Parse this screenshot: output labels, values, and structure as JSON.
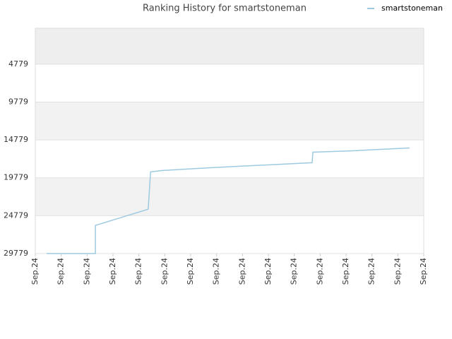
{
  "chart_data": {
    "type": "line",
    "title": "Ranking History for smartstoneman",
    "series": [
      {
        "name": "smartstoneman",
        "color": "#9ecae1",
        "x": [
          0.44,
          2.32,
          2.32,
          4.36,
          4.45,
          4.91,
          6.82,
          8.45,
          10.69,
          10.72,
          12.27,
          14.45
        ],
        "values": [
          29779,
          29779,
          26062,
          23924,
          18998,
          18812,
          18441,
          18162,
          17790,
          16396,
          16210,
          15838
        ]
      }
    ],
    "xlim": [
      0,
      15
    ],
    "xticks": [
      {
        "value": 0,
        "label": "Sep.24"
      },
      {
        "value": 1,
        "label": "Sep.24"
      },
      {
        "value": 2,
        "label": "Sep.24"
      },
      {
        "value": 3,
        "label": "Sep.24"
      },
      {
        "value": 4,
        "label": "Sep.24"
      },
      {
        "value": 5,
        "label": "Sep.24"
      },
      {
        "value": 6,
        "label": "Sep.24"
      },
      {
        "value": 7,
        "label": "Sep.24"
      },
      {
        "value": 8,
        "label": "Sep.24"
      },
      {
        "value": 9,
        "label": "Sep.24"
      },
      {
        "value": 10,
        "label": "Sep.24"
      },
      {
        "value": 11,
        "label": "Sep.24"
      },
      {
        "value": 12,
        "label": "Sep.24"
      },
      {
        "value": 13,
        "label": "Sep.24"
      },
      {
        "value": 14,
        "label": "Sep.24"
      },
      {
        "value": 15,
        "label": "Sep.24"
      }
    ],
    "ylim": [
      29779,
      39
    ],
    "yticks": [
      4779,
      9779,
      14779,
      19779,
      24779,
      29779
    ],
    "legend": "top-right"
  }
}
